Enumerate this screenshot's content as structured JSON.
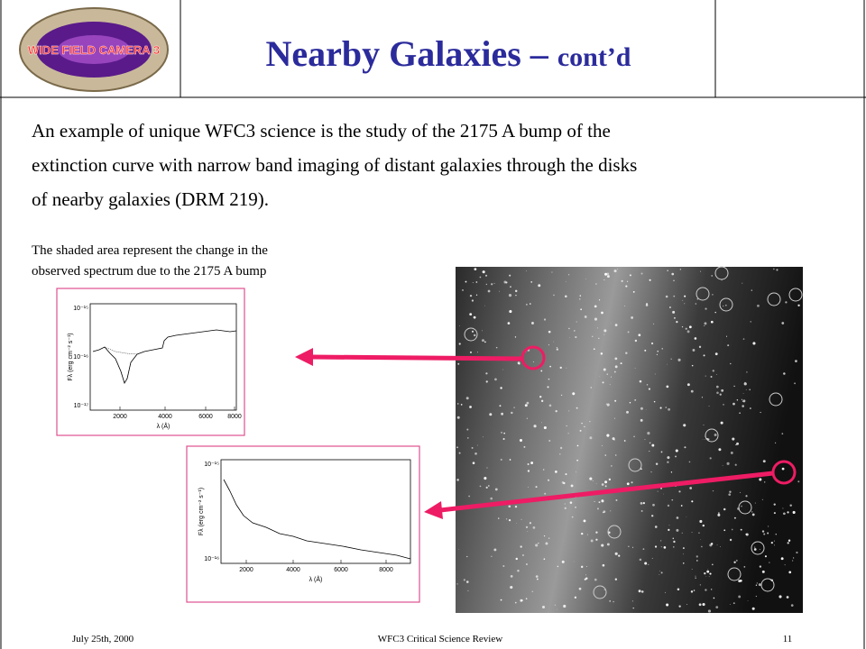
{
  "header": {
    "logo_text": "WIDE FIELD CAMERA 3",
    "title": "Nearby Galaxies – ",
    "title_suffix": "cont’d"
  },
  "body": {
    "lines": [
      "An example of unique WFC3 science is the study of the 2175 A bump of the",
      "extinction curve with narrow band imaging of distant galaxies through the disks",
      "of nearby galaxies (DRM 219)."
    ]
  },
  "caption": {
    "lines": [
      "The shaded area represent the change in the",
      "observed spectrum due to the 2175 A bump"
    ]
  },
  "plots": [
    {
      "xticks": [
        "2000",
        "4000",
        "6000",
        "8000"
      ],
      "yticks": [
        "10⁻¹⁵",
        "10⁻¹⁶",
        "10⁻¹⁷"
      ],
      "xlabel": "λ (Å)",
      "ylabel": "Fλ (erg cm⁻² s⁻¹)"
    },
    {
      "xticks": [
        "2000",
        "4000",
        "6000",
        "8000"
      ],
      "yticks": [
        "10⁻¹⁵",
        "10⁻¹⁶"
      ],
      "xlabel": "λ (Å)",
      "ylabel": "Fλ (erg cm⁻² s⁻¹)"
    }
  ],
  "footer": {
    "date": "July 25th, 2000",
    "center": "WFC3 Critical Science Review",
    "page": "11"
  }
}
